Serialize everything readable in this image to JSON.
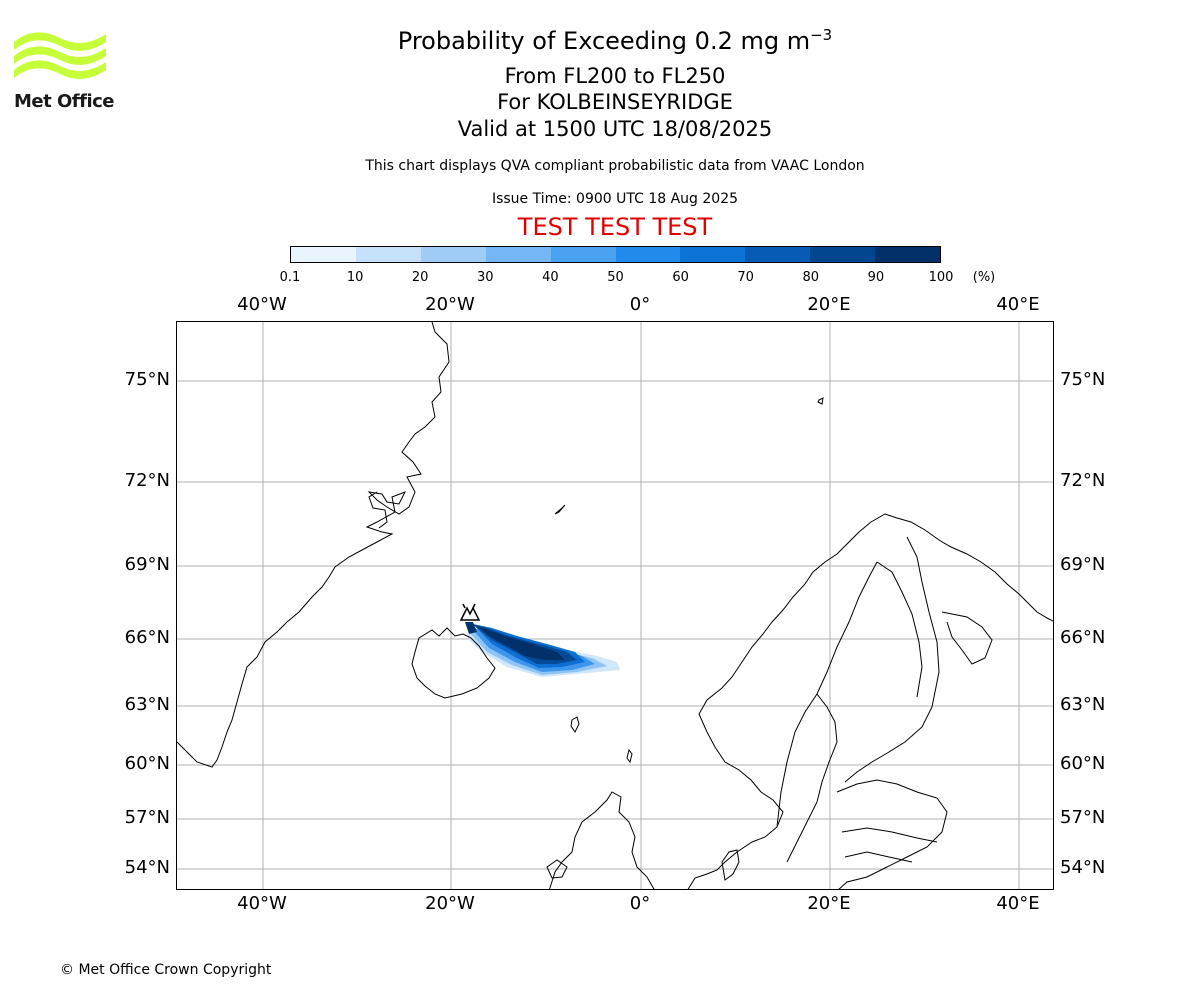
{
  "header": {
    "title": "Probability of Exceeding 0.2 mg m",
    "title_superscript": "−3",
    "level_range": "From FL200 to FL250",
    "location": "For KOLBEINSEYRIDGE",
    "valid_time": "Valid at 1500 UTC 18/08/2025",
    "description": "This chart displays QVA compliant probabilistic data from VAAC London",
    "issue_time": "Issue Time: 0900 UTC 18 Aug 2025",
    "test_banner": "TEST TEST TEST"
  },
  "logo": {
    "text": "Met Office",
    "color": "#c6ff3a"
  },
  "colorbar": {
    "ticks": [
      "0.1",
      "10",
      "20",
      "30",
      "40",
      "50",
      "60",
      "70",
      "80",
      "90",
      "100"
    ],
    "unit": "(%)",
    "colors": [
      "#eaf4ff",
      "#c6e2fb",
      "#9fcdf7",
      "#74b7f4",
      "#4aa1f0",
      "#238bec",
      "#0e73d6",
      "#075bb4",
      "#034690",
      "#023169"
    ]
  },
  "map": {
    "top_labels": [
      "40°W",
      "20°W",
      "0°",
      "20°E",
      "40°E"
    ],
    "bottom_labels": [
      "40°W",
      "20°W",
      "0°",
      "20°E",
      "40°E"
    ],
    "left_labels": [
      "75°N",
      "72°N",
      "69°N",
      "66°N",
      "63°N",
      "60°N",
      "57°N",
      "54°N"
    ],
    "right_labels": [
      "75°N",
      "72°N",
      "69°N",
      "66°N",
      "63°N",
      "60°N",
      "57°N",
      "54°N"
    ],
    "grid_color": "#b0b0b0",
    "volcano_marker": "volcano-icon"
  },
  "footer": {
    "copyright": "© Met Office Crown Copyright"
  }
}
